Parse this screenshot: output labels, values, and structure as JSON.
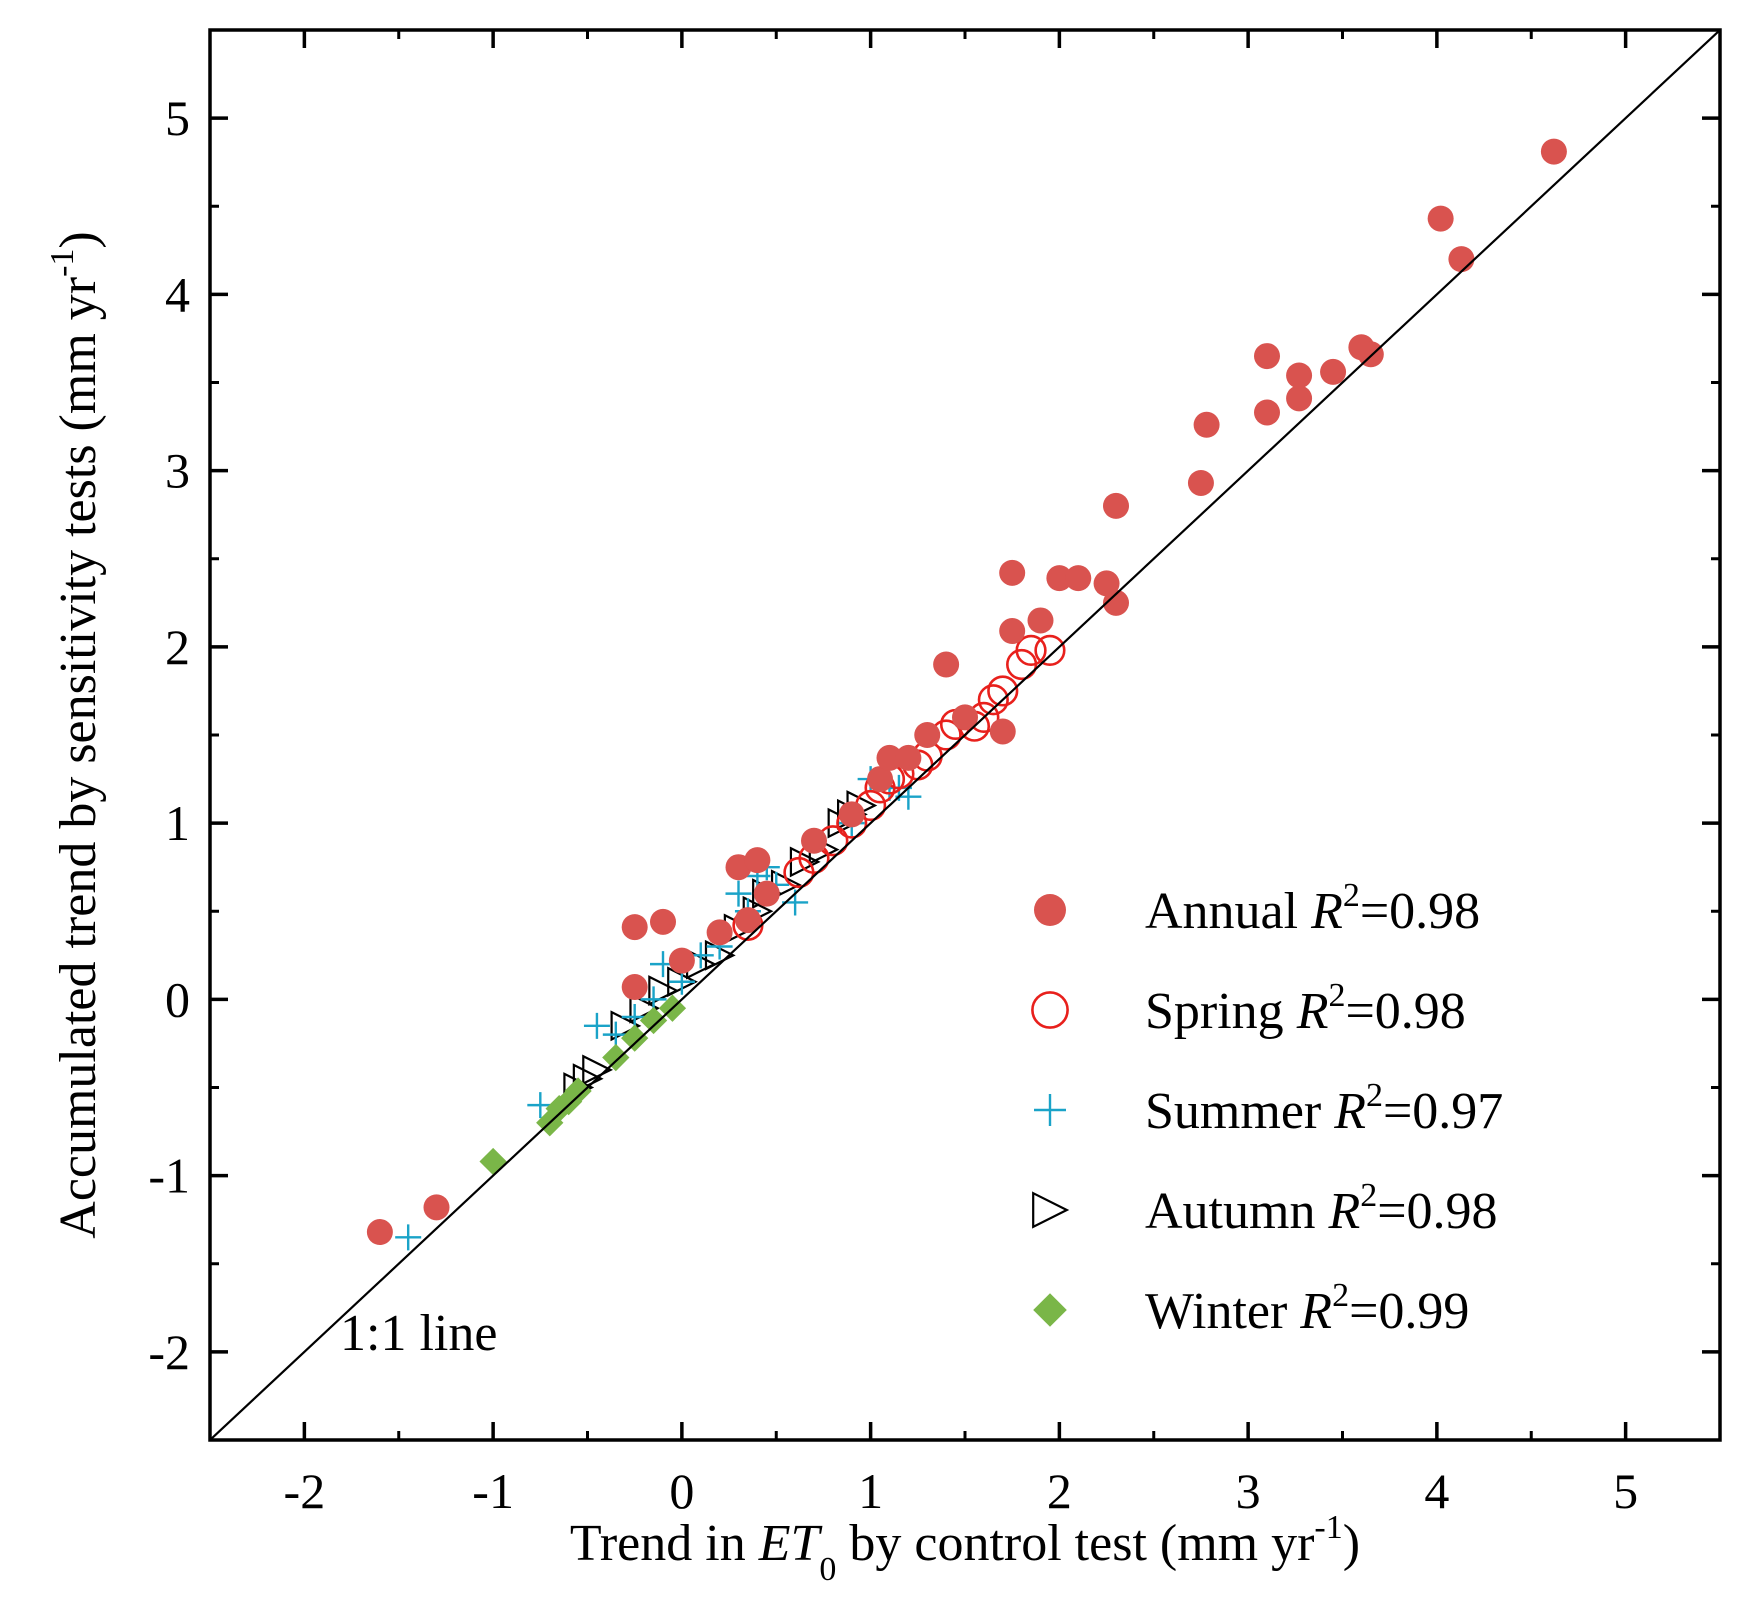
{
  "chart_data": {
    "type": "scatter",
    "title": "",
    "xlabel": {
      "prefix": "Trend in ",
      "var": "ET",
      "sub": "0",
      "suffix": " by control test (mm yr",
      "sup": "-1",
      "end": ")"
    },
    "ylabel": {
      "text": "Accumulated trend by sensitivity tests (mm yr",
      "sup": "-1",
      "end": ")"
    },
    "xlim": [
      -2.5,
      5.5
    ],
    "ylim": [
      -2.5,
      5.5
    ],
    "xticks": [
      -2,
      -1,
      0,
      1,
      2,
      3,
      4,
      5
    ],
    "yticks": [
      -2,
      -1,
      0,
      1,
      2,
      3,
      4,
      5
    ],
    "reference_line": {
      "label": "1:1 line",
      "slope": 1,
      "intercept": 0
    },
    "legend_position": "bottom-right",
    "series": [
      {
        "name": "Annual",
        "r2_label": "R",
        "r2_sup": "2",
        "r2_value": "=0.98",
        "marker": "filled-circle",
        "color": "#d9534f",
        "points": [
          [
            -1.6,
            -1.32
          ],
          [
            -1.3,
            -1.18
          ],
          [
            -0.25,
            0.07
          ],
          [
            -0.25,
            0.41
          ],
          [
            -0.1,
            0.44
          ],
          [
            0.0,
            0.22
          ],
          [
            0.2,
            0.38
          ],
          [
            0.3,
            0.75
          ],
          [
            0.4,
            0.79
          ],
          [
            0.35,
            0.45
          ],
          [
            0.45,
            0.6
          ],
          [
            0.7,
            0.9
          ],
          [
            0.9,
            1.05
          ],
          [
            1.05,
            1.25
          ],
          [
            1.1,
            1.37
          ],
          [
            1.2,
            1.37
          ],
          [
            1.3,
            1.5
          ],
          [
            1.4,
            1.9
          ],
          [
            1.5,
            1.6
          ],
          [
            1.7,
            1.52
          ],
          [
            1.75,
            2.09
          ],
          [
            1.75,
            2.42
          ],
          [
            1.9,
            2.15
          ],
          [
            2.0,
            2.39
          ],
          [
            2.1,
            2.39
          ],
          [
            2.25,
            2.36
          ],
          [
            2.3,
            2.25
          ],
          [
            2.3,
            2.8
          ],
          [
            2.75,
            2.93
          ],
          [
            2.78,
            3.26
          ],
          [
            3.1,
            3.33
          ],
          [
            3.1,
            3.65
          ],
          [
            3.27,
            3.41
          ],
          [
            3.27,
            3.54
          ],
          [
            3.45,
            3.56
          ],
          [
            3.6,
            3.7
          ],
          [
            3.65,
            3.66
          ],
          [
            4.02,
            4.43
          ],
          [
            4.13,
            4.2
          ],
          [
            4.62,
            4.81
          ]
        ]
      },
      {
        "name": "Spring",
        "r2_label": "R",
        "r2_sup": "2",
        "r2_value": "=0.98",
        "marker": "open-circle",
        "color": "#e8201c",
        "points": [
          [
            0.35,
            0.42
          ],
          [
            0.62,
            0.72
          ],
          [
            0.7,
            0.8
          ],
          [
            0.8,
            0.9
          ],
          [
            0.9,
            1.0
          ],
          [
            1.0,
            1.1
          ],
          [
            1.05,
            1.2
          ],
          [
            1.1,
            1.25
          ],
          [
            1.15,
            1.28
          ],
          [
            1.25,
            1.33
          ],
          [
            1.3,
            1.38
          ],
          [
            1.4,
            1.5
          ],
          [
            1.45,
            1.56
          ],
          [
            1.55,
            1.55
          ],
          [
            1.6,
            1.6
          ],
          [
            1.65,
            1.7
          ],
          [
            1.7,
            1.75
          ],
          [
            1.8,
            1.9
          ],
          [
            1.85,
            1.98
          ],
          [
            1.95,
            1.98
          ]
        ]
      },
      {
        "name": "Summer",
        "r2_label": "R",
        "r2_sup": "2",
        "r2_value": "=0.97",
        "marker": "plus",
        "color": "#1aa3c8",
        "points": [
          [
            -1.45,
            -1.35
          ],
          [
            -0.75,
            -0.6
          ],
          [
            -0.45,
            -0.15
          ],
          [
            -0.35,
            -0.2
          ],
          [
            -0.25,
            -0.1
          ],
          [
            -0.15,
            0.0
          ],
          [
            -0.1,
            0.2
          ],
          [
            0.0,
            0.1
          ],
          [
            0.1,
            0.25
          ],
          [
            0.2,
            0.3
          ],
          [
            0.3,
            0.6
          ],
          [
            0.35,
            0.5
          ],
          [
            0.4,
            0.7
          ],
          [
            0.45,
            0.75
          ],
          [
            0.5,
            0.65
          ],
          [
            0.6,
            0.55
          ],
          [
            0.9,
            1.0
          ],
          [
            1.0,
            1.25
          ],
          [
            1.1,
            1.2
          ],
          [
            1.15,
            1.2
          ],
          [
            1.2,
            1.15
          ]
        ]
      },
      {
        "name": "Autumn",
        "r2_label": "R",
        "r2_sup": "2",
        "r2_value": "=0.98",
        "marker": "open-triangle-right",
        "color": "#000000",
        "points": [
          [
            -0.55,
            -0.5
          ],
          [
            -0.5,
            -0.45
          ],
          [
            -0.45,
            -0.4
          ],
          [
            -0.3,
            -0.15
          ],
          [
            -0.2,
            -0.05
          ],
          [
            -0.1,
            0.05
          ],
          [
            0.0,
            0.1
          ],
          [
            0.1,
            0.2
          ],
          [
            0.2,
            0.25
          ],
          [
            0.3,
            0.4
          ],
          [
            0.4,
            0.5
          ],
          [
            0.45,
            0.6
          ],
          [
            0.55,
            0.65
          ],
          [
            0.65,
            0.78
          ],
          [
            0.75,
            0.85
          ],
          [
            0.85,
            1.0
          ],
          [
            0.9,
            1.05
          ],
          [
            0.95,
            1.1
          ]
        ]
      },
      {
        "name": "Winter",
        "r2_label": "R",
        "r2_sup": "2",
        "r2_value": "=0.99",
        "marker": "filled-diamond",
        "color": "#7ab648",
        "points": [
          [
            -1.0,
            -0.92
          ],
          [
            -0.7,
            -0.7
          ],
          [
            -0.65,
            -0.62
          ],
          [
            -0.6,
            -0.58
          ],
          [
            -0.55,
            -0.52
          ],
          [
            -0.35,
            -0.33
          ],
          [
            -0.25,
            -0.22
          ],
          [
            -0.15,
            -0.12
          ],
          [
            -0.05,
            -0.05
          ]
        ]
      }
    ]
  }
}
